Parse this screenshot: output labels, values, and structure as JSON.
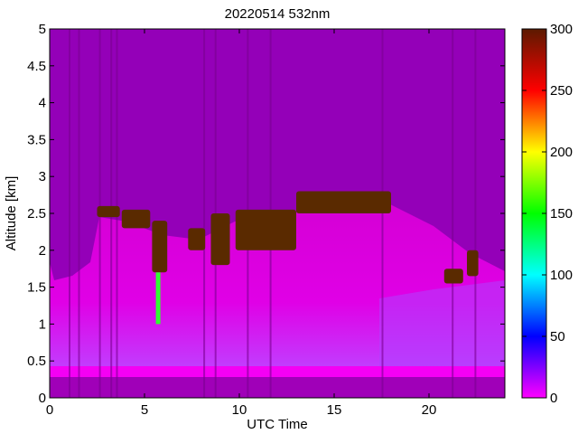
{
  "chart_data": {
    "type": "heatmap",
    "title": "20220514 532nm",
    "xlabel": "UTC Time",
    "ylabel": "Altitude [km]",
    "xlim": [
      0,
      24
    ],
    "ylim": [
      0,
      5
    ],
    "x_ticks": [
      "0",
      "5",
      "10",
      "15",
      "20"
    ],
    "y_ticks": [
      "0",
      "0.5",
      "1",
      "1.5",
      "2",
      "2.5",
      "3",
      "3.5",
      "4",
      "4.5",
      "5"
    ],
    "colorbar": {
      "range": [
        0,
        300
      ],
      "ticks": [
        "0",
        "50",
        "100",
        "150",
        "200",
        "250",
        "300"
      ],
      "colormap": [
        "#ff00ff",
        "#0000ff",
        "#00ffff",
        "#00ff00",
        "#ffff00",
        "#ff0000",
        "#5c1a00"
      ]
    },
    "background_color": "#9400b8",
    "boundary_layer_color": "#f400f4",
    "cloud_layer": {
      "color": "#5a2a00",
      "segments": [
        {
          "x": [
            2.5,
            3.7
          ],
          "altitude_km": [
            2.45,
            2.6
          ]
        },
        {
          "x": [
            3.8,
            5.3
          ],
          "altitude_km": [
            2.3,
            2.55
          ]
        },
        {
          "x": [
            5.4,
            6.2
          ],
          "altitude_km": [
            1.7,
            2.4
          ]
        },
        {
          "x": [
            7.3,
            8.2
          ],
          "altitude_km": [
            2.0,
            2.3
          ]
        },
        {
          "x": [
            8.5,
            9.5
          ],
          "altitude_km": [
            1.8,
            2.5
          ]
        },
        {
          "x": [
            9.8,
            13.0
          ],
          "altitude_km": [
            2.0,
            2.55
          ]
        },
        {
          "x": [
            13.0,
            18.0
          ],
          "altitude_km": [
            2.5,
            2.8
          ]
        },
        {
          "x": [
            20.8,
            21.8
          ],
          "altitude_km": [
            1.55,
            1.75
          ]
        },
        {
          "x": [
            22.0,
            22.6
          ],
          "altitude_km": [
            1.65,
            2.0
          ]
        }
      ]
    }
  }
}
